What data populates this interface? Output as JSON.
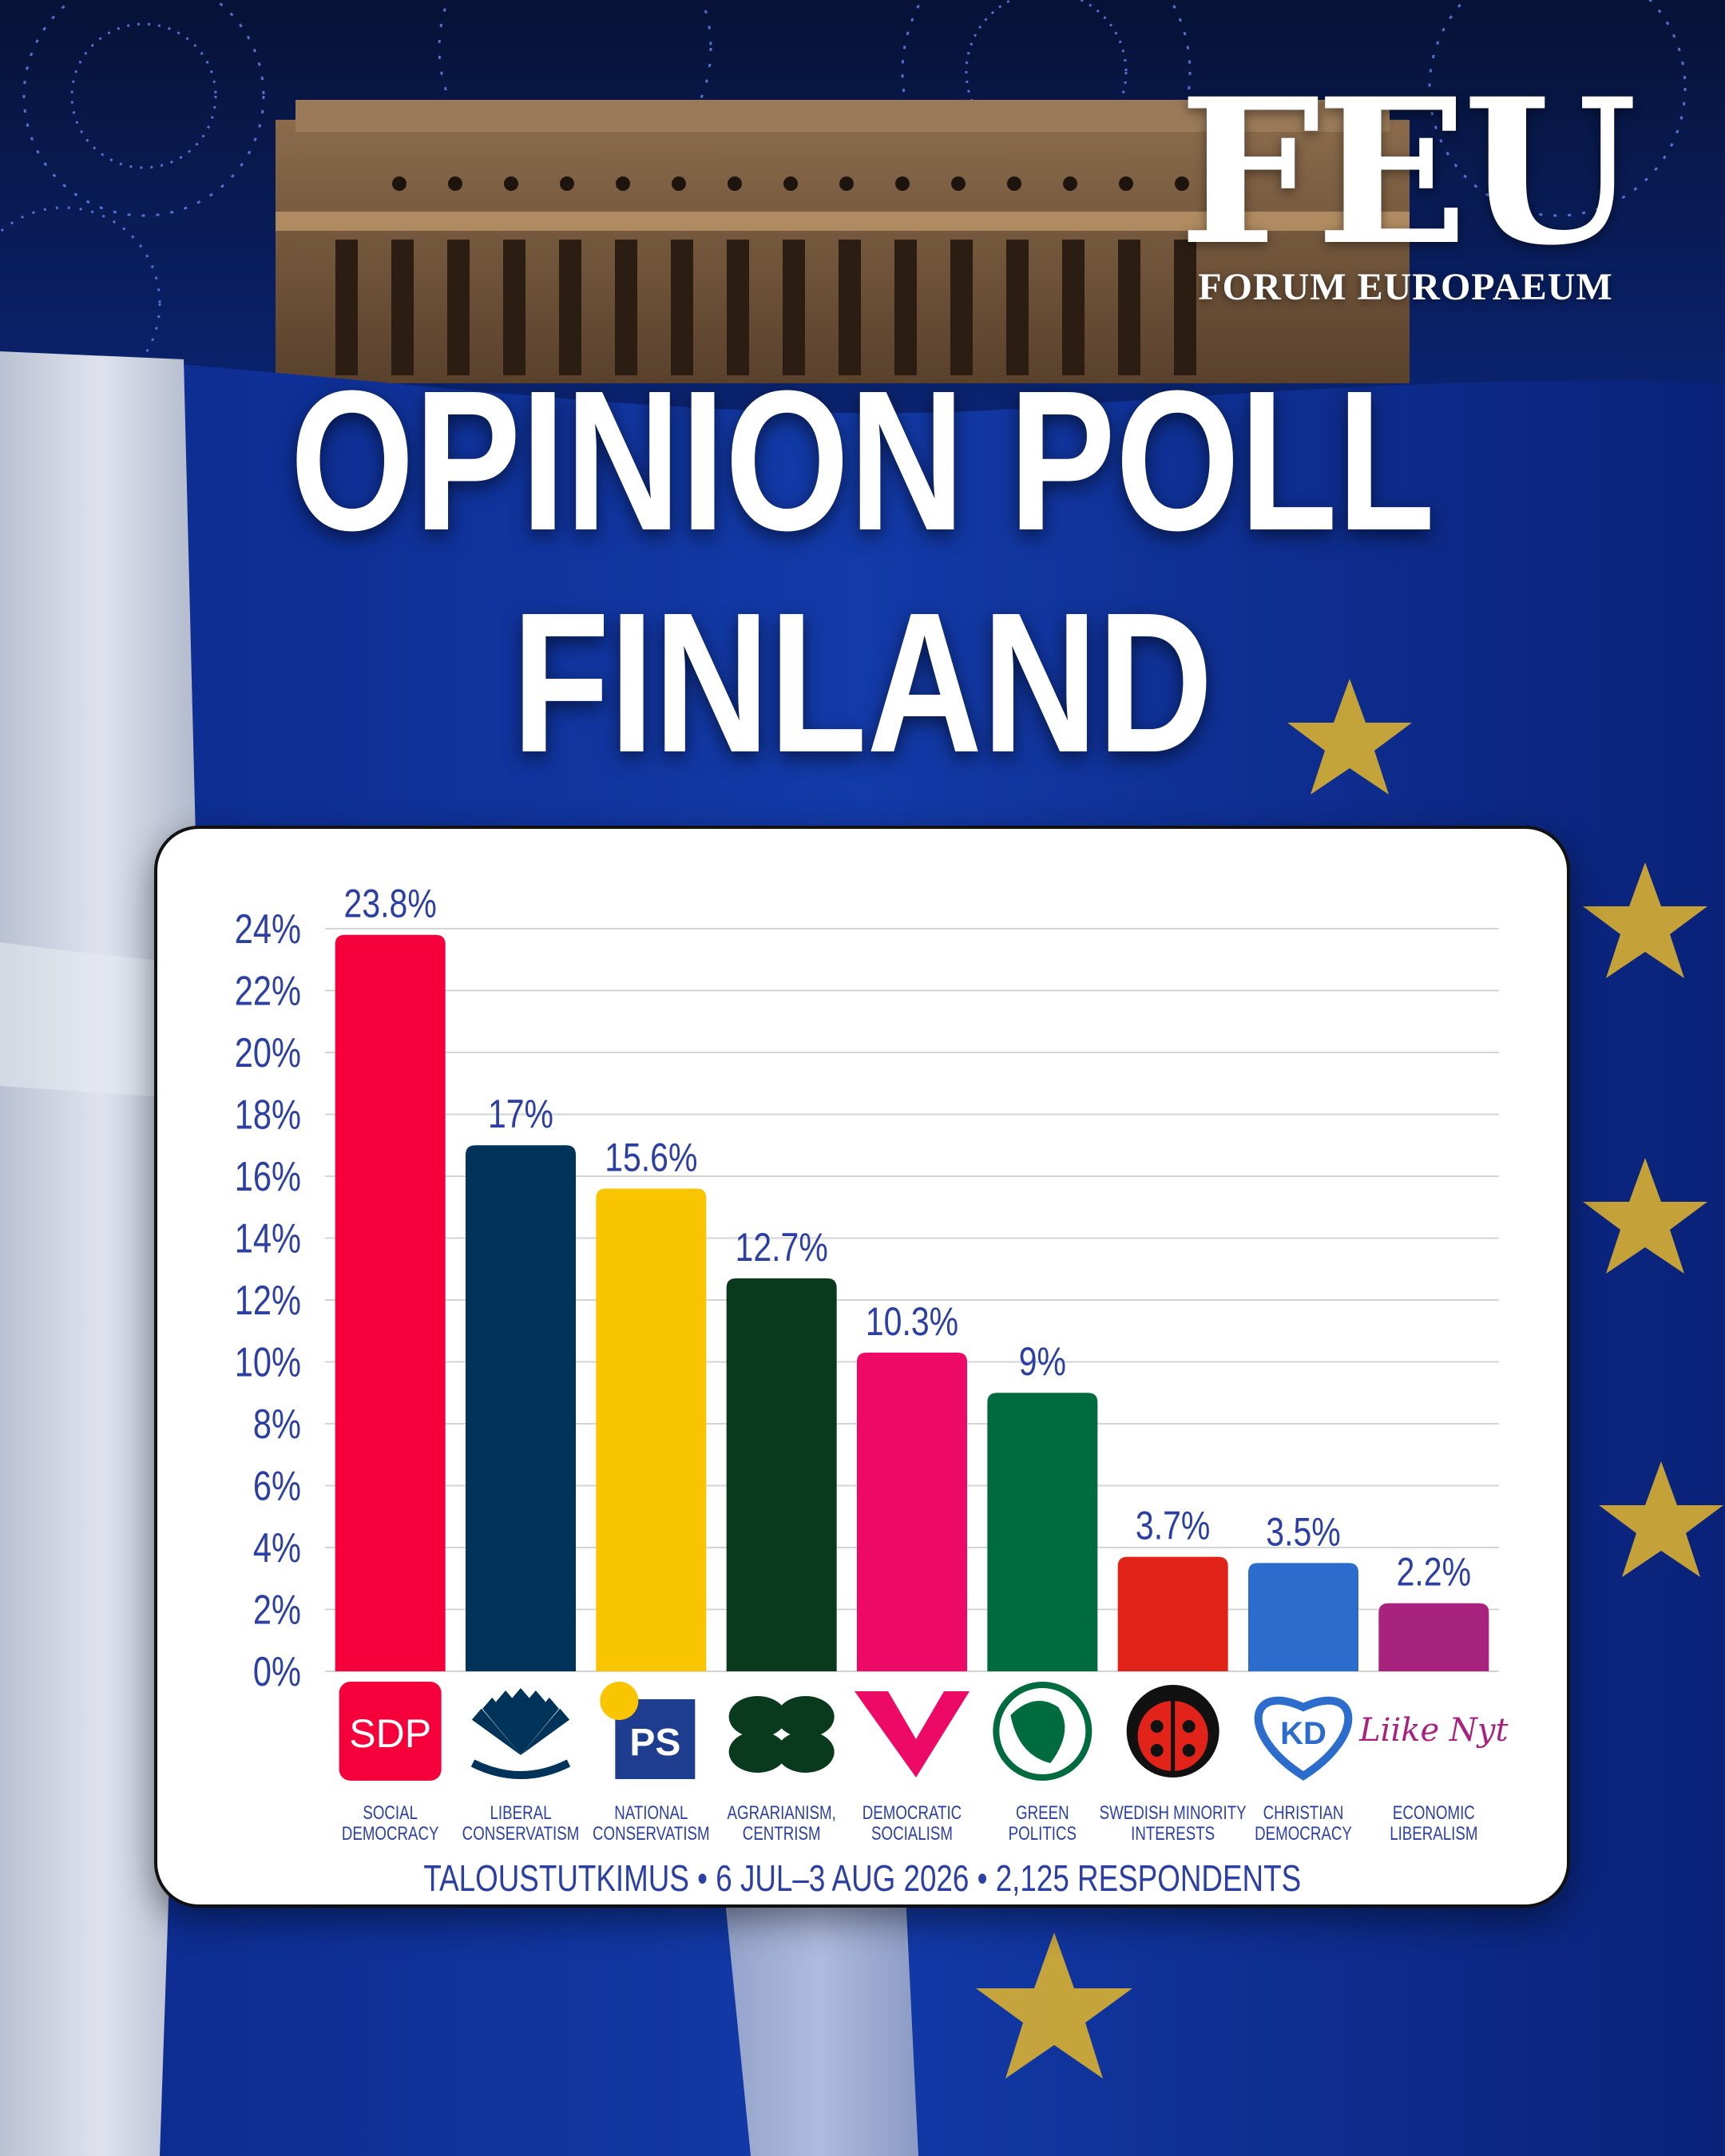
{
  "header": {
    "logo_mark": "FEU",
    "logo_name": "FORUM EUROPAEUM",
    "title_line1": "OPINION POLL",
    "title_line2": "FINLAND"
  },
  "footer": {
    "source": "TALOUSTUTKIMUS • 6 JUL–3 AUG 2026 • 2,125 RESPONDENTS"
  },
  "chart_data": {
    "type": "bar",
    "title": "",
    "xlabel": "",
    "ylabel": "",
    "ylim": [
      0,
      24
    ],
    "yticks": [
      "0%",
      "2%",
      "4%",
      "6%",
      "8%",
      "10%",
      "12%",
      "14%",
      "16%",
      "18%",
      "20%",
      "22%",
      "24%"
    ],
    "grid": true,
    "categories": [
      {
        "logo": "SDP",
        "icon": "sdp-logo-icon",
        "line1": "SOCIAL",
        "line2": "DEMOCRACY"
      },
      {
        "logo": "",
        "icon": "kokoomus-logo-icon",
        "line1": "LIBERAL",
        "line2": "CONSERVATISM"
      },
      {
        "logo": "PS",
        "icon": "ps-logo-icon",
        "line1": "NATIONAL",
        "line2": "CONSERVATISM"
      },
      {
        "logo": "",
        "icon": "clover-logo-icon",
        "line1": "AGRARIANISM,",
        "line2": "CENTRISM"
      },
      {
        "logo": "",
        "icon": "vasemmisto-logo-icon",
        "line1": "DEMOCRATIC",
        "line2": "SOCIALISM"
      },
      {
        "logo": "",
        "icon": "green-globe-logo-icon",
        "line1": "GREEN",
        "line2": "POLITICS"
      },
      {
        "logo": "",
        "icon": "ladybug-logo-icon",
        "line1": "SWEDISH MINORITY",
        "line2": "INTERESTS"
      },
      {
        "logo": "",
        "icon": "kd-heart-logo-icon",
        "line1": "CHRISTIAN",
        "line2": "DEMOCRACY"
      },
      {
        "logo": "Liike Nyt",
        "icon": "liike-nyt-logo-icon",
        "line1": "ECONOMIC",
        "line2": "LIBERALISM"
      }
    ],
    "values": [
      23.8,
      17,
      15.6,
      12.7,
      10.3,
      9,
      3.7,
      3.5,
      2.2
    ],
    "value_labels": [
      "23.8%",
      "17%",
      "15.6%",
      "12.7%",
      "10.3%",
      "9%",
      "3.7%",
      "3.5%",
      "2.2%"
    ],
    "colors": [
      "#f5003a",
      "#003359",
      "#f9c400",
      "#0a3a1e",
      "#ec0a66",
      "#006b3f",
      "#e2231a",
      "#2b6ccc",
      "#a8237e"
    ],
    "text_color": "#2c3fa3",
    "grid_color": "#d4d4d4"
  }
}
